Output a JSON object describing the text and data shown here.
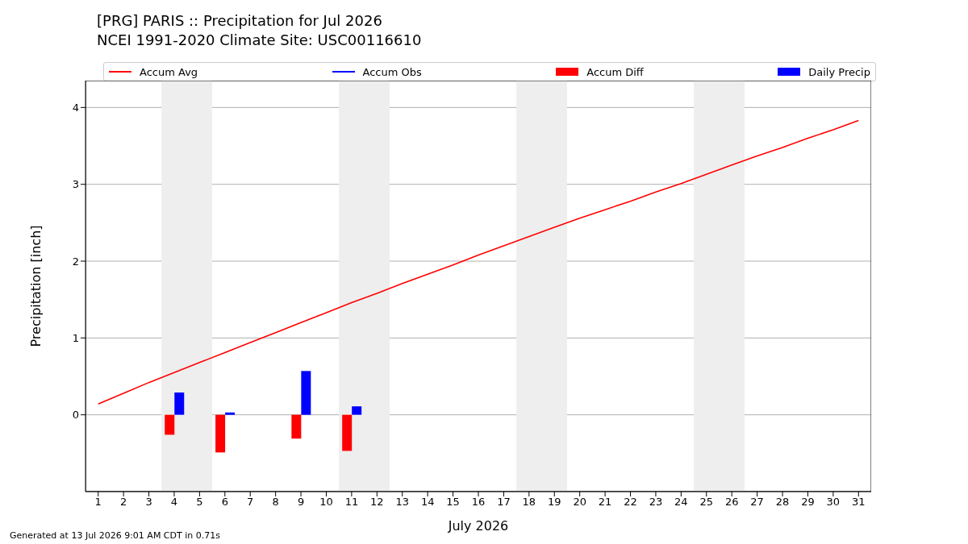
{
  "chart_data": {
    "type": "bar",
    "title": "[PRG] PARIS :: Precipitation for Jul 2026",
    "subtitle": "NCEI 1991-2020 Climate Site: USC00116610",
    "xlabel": "July 2026",
    "ylabel": "Precipitation [inch]",
    "x": [
      1,
      2,
      3,
      4,
      5,
      6,
      7,
      8,
      9,
      10,
      11,
      12,
      13,
      14,
      15,
      16,
      17,
      18,
      19,
      20,
      21,
      22,
      23,
      24,
      25,
      26,
      27,
      28,
      29,
      30,
      31
    ],
    "series": [
      {
        "name": "Accum Avg",
        "type": "line",
        "color": "#ff0000",
        "values": [
          0.14,
          0.28,
          0.42,
          0.55,
          0.68,
          0.81,
          0.94,
          1.07,
          1.2,
          1.33,
          1.46,
          1.58,
          1.71,
          1.83,
          1.95,
          2.08,
          2.2,
          2.32,
          2.44,
          2.56,
          2.67,
          2.78,
          2.9,
          3.01,
          3.13,
          3.25,
          3.37,
          3.48,
          3.6,
          3.71,
          3.83
        ]
      },
      {
        "name": "Accum Obs",
        "type": "line",
        "color": "#0000ff",
        "values": [
          null,
          null,
          null,
          null,
          null,
          null,
          null,
          null,
          null,
          null,
          null,
          null,
          null,
          null,
          null,
          null,
          null,
          null,
          null,
          null,
          null,
          null,
          null,
          null,
          null,
          null,
          null,
          null,
          null,
          null,
          null
        ]
      },
      {
        "name": "Accum Diff",
        "color": "#ff0000",
        "values": [
          null,
          null,
          null,
          -0.26,
          null,
          -0.49,
          null,
          null,
          -0.31,
          null,
          -0.47,
          null,
          null,
          null,
          null,
          null,
          null,
          null,
          null,
          null,
          null,
          null,
          null,
          null,
          null,
          null,
          null,
          null,
          null,
          null,
          null
        ]
      },
      {
        "name": "Daily Precip",
        "color": "#0000ff",
        "values": [
          null,
          null,
          null,
          0.29,
          null,
          0.03,
          null,
          null,
          0.57,
          null,
          0.11,
          null,
          null,
          null,
          null,
          null,
          null,
          null,
          null,
          null,
          null,
          null,
          null,
          null,
          null,
          null,
          null,
          null,
          null,
          null,
          null
        ]
      }
    ],
    "xlim": [
      0.5,
      31.5
    ],
    "xticks": [
      1,
      2,
      3,
      4,
      5,
      6,
      7,
      8,
      9,
      10,
      11,
      12,
      13,
      14,
      15,
      16,
      17,
      18,
      19,
      20,
      21,
      22,
      23,
      24,
      25,
      26,
      27,
      28,
      29,
      30,
      31
    ],
    "ylim": [
      -1,
      4.35
    ],
    "yticks": [
      0,
      1,
      2,
      3,
      4
    ],
    "grid": "y",
    "legend": "top",
    "line_style": "solid",
    "marker": "none",
    "bands": [
      {
        "axis": "x",
        "from": 3.5,
        "to": 5.5,
        "color": "#eeeeee"
      },
      {
        "axis": "x",
        "from": 10.5,
        "to": 12.5,
        "color": "#eeeeee"
      },
      {
        "axis": "x",
        "from": 17.5,
        "to": 19.5,
        "color": "#eeeeee"
      },
      {
        "axis": "x",
        "from": 24.5,
        "to": 26.5,
        "color": "#eeeeee"
      }
    ],
    "annotations": [
      "Generated at 13 Jul 2026 9:01 AM CDT in 0.71s"
    ]
  }
}
